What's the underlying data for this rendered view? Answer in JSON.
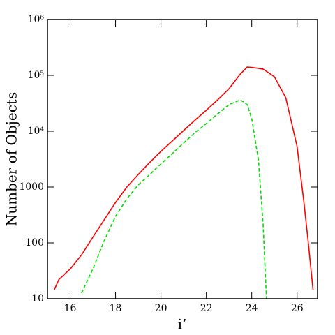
{
  "chart_data": {
    "type": "line",
    "x_label": "i’",
    "y_label": "Number of Objects",
    "xlim": [
      15,
      26.9
    ],
    "xticks": [
      16,
      18,
      20,
      22,
      24,
      26
    ],
    "ylim": [
      10,
      1000000
    ],
    "y_log": true,
    "yticks": [
      10,
      100,
      1000,
      {
        "value": 10000,
        "label": "10⁴"
      },
      {
        "value": 100000,
        "label": "10⁵"
      },
      {
        "value": 1000000,
        "label": "10⁶"
      }
    ],
    "series": [
      {
        "color": "#ff0000",
        "line_style": "solid",
        "x": [
          15.3,
          15.5,
          16,
          16.5,
          17,
          17.5,
          18,
          18.5,
          19,
          19.5,
          20,
          20.5,
          21,
          21.5,
          22,
          22.5,
          23,
          23.5,
          23.8,
          24,
          24.5,
          25,
          25.5,
          26,
          26.3,
          26.5,
          26.7
        ],
        "values": [
          14.5,
          22,
          34,
          61,
          126,
          259,
          531,
          1000,
          1680,
          2750,
          4360,
          6680,
          10300,
          15800,
          23700,
          36500,
          57700,
          106000,
          141000,
          139000,
          130000,
          94400,
          39800,
          5310,
          531,
          94,
          14.5
        ]
      },
      {
        "color": "#00dd00",
        "line_style": "dashed",
        "x": [
          16.5,
          17,
          17.5,
          18,
          18.5,
          19,
          19.5,
          20,
          20.5,
          21,
          21.5,
          22,
          22.5,
          23,
          23.5,
          23.8,
          24,
          24.3,
          24.5,
          24.65
        ],
        "values": [
          12.6,
          34,
          109,
          299,
          617,
          1090,
          1670,
          2590,
          3980,
          6140,
          9440,
          13700,
          20500,
          29900,
          36500,
          29900,
          16800,
          2990,
          224,
          10
        ]
      }
    ]
  }
}
